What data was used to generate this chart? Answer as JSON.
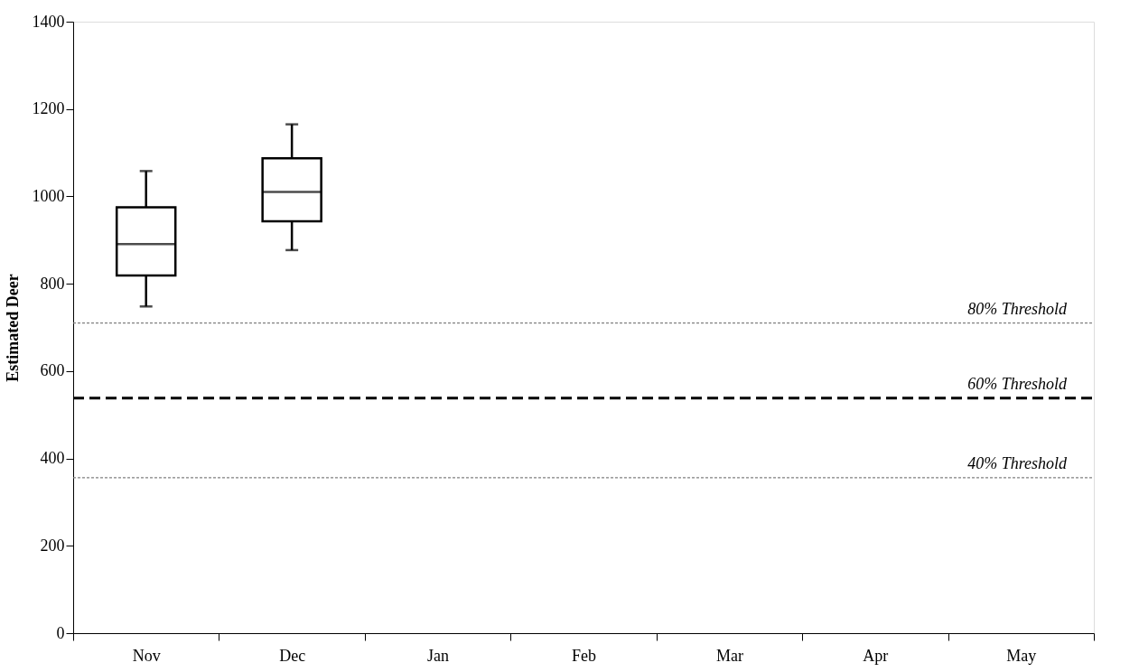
{
  "chart_data": {
    "type": "box",
    "ylabel": "Estimated Deer",
    "categories": [
      "Nov",
      "Dec",
      "Jan",
      "Feb",
      "Mar",
      "Apr",
      "May"
    ],
    "boxes": [
      {
        "low": 748,
        "q1": 819,
        "median": 891,
        "q3": 975,
        "high": 1058
      },
      {
        "low": 877,
        "q1": 943,
        "median": 1010,
        "q3": 1087,
        "high": 1165
      },
      null,
      null,
      null,
      null,
      null
    ],
    "ylim": [
      0,
      1400
    ],
    "yticks": [
      0,
      200,
      400,
      600,
      800,
      1000,
      1200,
      1400
    ],
    "grid": false,
    "ref_lines": [
      {
        "axis": "y",
        "value": 710,
        "label": "80% Threshold",
        "color": "#808080",
        "line_style": "dotted"
      },
      {
        "axis": "y",
        "value": 538,
        "label": "60% Threshold",
        "color": "#000000",
        "line_style": "dashed"
      },
      {
        "axis": "y",
        "value": 356,
        "label": "40% Threshold",
        "color": "#808080",
        "line_style": "dotted"
      }
    ]
  }
}
